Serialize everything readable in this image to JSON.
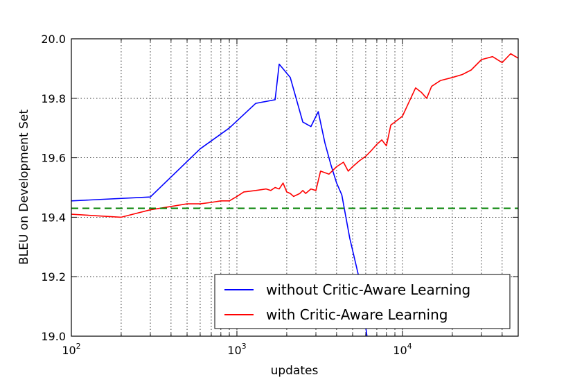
{
  "chart_data": {
    "type": "line",
    "title": "",
    "xlabel": "updates",
    "ylabel": "BLEU on Development Set",
    "xscale": "log",
    "xlim": [
      100,
      50000
    ],
    "ylim": [
      19.0,
      20.0
    ],
    "grid": "dotted",
    "x_ticks": [
      {
        "value": 100,
        "mantissa": "10",
        "exp": "2"
      },
      {
        "value": 1000,
        "mantissa": "10",
        "exp": "3"
      },
      {
        "value": 10000,
        "mantissa": "10",
        "exp": "4"
      }
    ],
    "y_ticks": [
      {
        "value": 19.0,
        "label": "19.0"
      },
      {
        "value": 19.2,
        "label": "19.2"
      },
      {
        "value": 19.4,
        "label": "19.4"
      },
      {
        "value": 19.6,
        "label": "19.6"
      },
      {
        "value": 19.8,
        "label": "19.8"
      },
      {
        "value": 20.0,
        "label": "20.0"
      }
    ],
    "legend_position": "bottom-right",
    "series": [
      {
        "name": "without Critic-Aware Learning",
        "color": "#0000ff",
        "x": [
          100,
          300,
          600,
          900,
          1300,
          1700,
          1800,
          2100,
          2500,
          2800,
          3100,
          3400,
          3700,
          4000,
          4300,
          4800,
          5500,
          6100,
          7000
        ],
        "y": [
          19.455,
          19.468,
          19.63,
          19.7,
          19.783,
          19.795,
          19.915,
          19.87,
          19.72,
          19.705,
          19.755,
          19.65,
          19.575,
          19.515,
          19.475,
          19.33,
          19.19,
          19.0,
          18.85
        ]
      },
      {
        "name": "with Critic-Aware Learning",
        "color": "#ff0000",
        "x": [
          100,
          200,
          300,
          500,
          600,
          700,
          800,
          900,
          1000,
          1100,
          1300,
          1500,
          1600,
          1700,
          1800,
          1900,
          2000,
          2100,
          2200,
          2400,
          2500,
          2600,
          2800,
          3000,
          3200,
          3600,
          4000,
          4400,
          4700,
          5000,
          5500,
          6000,
          6500,
          7000,
          7500,
          8000,
          8500,
          9000,
          10000,
          11000,
          12000,
          13000,
          14000,
          15000,
          17000,
          20000,
          23000,
          26000,
          30000,
          35000,
          40000,
          45000,
          50000
        ],
        "y": [
          19.41,
          19.4,
          19.425,
          19.445,
          19.445,
          19.45,
          19.455,
          19.455,
          19.47,
          19.485,
          19.49,
          19.495,
          19.49,
          19.5,
          19.495,
          19.515,
          19.485,
          19.48,
          19.47,
          19.48,
          19.49,
          19.48,
          19.495,
          19.49,
          19.555,
          19.545,
          19.57,
          19.585,
          19.555,
          19.57,
          19.59,
          19.605,
          19.625,
          19.645,
          19.66,
          19.64,
          19.71,
          19.72,
          19.74,
          19.79,
          19.835,
          19.82,
          19.8,
          19.84,
          19.86,
          19.87,
          19.88,
          19.895,
          19.93,
          19.94,
          19.92,
          19.95,
          19.935
        ]
      },
      {
        "name": "",
        "color": "#008000",
        "dashed": true,
        "x": [
          100,
          50000
        ],
        "y": [
          19.43,
          19.43
        ]
      }
    ]
  }
}
